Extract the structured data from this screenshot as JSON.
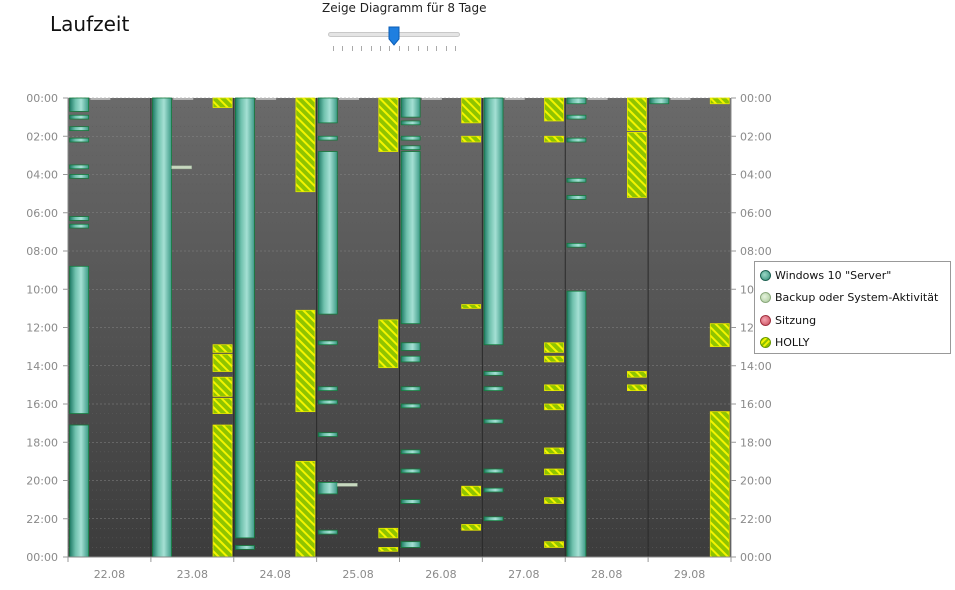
{
  "page": {
    "title": "Laufzeit",
    "slider_label": "Zeige Diagramm für 8 Tage",
    "slider_value_days": 8
  },
  "legend": [
    {
      "label": "Windows 10 \"Server\"",
      "color": "#2e9b84",
      "icon": "windows-dot"
    },
    {
      "label": "Backup oder System-Aktivität",
      "color": "#b9d8a8",
      "icon": "backup-dot"
    },
    {
      "label": "Sitzung",
      "color": "#d45a6a",
      "icon": "session-dot"
    },
    {
      "label": "HOLLY",
      "color": "#9acc00",
      "icon": "holly-dot"
    }
  ],
  "chart_data": {
    "type": "timeline",
    "title": "Laufzeit",
    "y_ticks": [
      "00:00",
      "02:00",
      "04:00",
      "06:00",
      "08:00",
      "10:00",
      "12:00",
      "14:00",
      "16:00",
      "18:00",
      "20:00",
      "22:00",
      "00:00"
    ],
    "y_range_hours": [
      0,
      24
    ],
    "categories": [
      "22.08",
      "23.08",
      "24.08",
      "25.08",
      "26.08",
      "27.08",
      "28.08",
      "29.08"
    ],
    "series": [
      {
        "name": "Windows 10 \"Server\"",
        "kind": "windows",
        "bars": [
          [
            0,
            0,
            0.7
          ],
          [
            0,
            0.9,
            1.1
          ],
          [
            0,
            1.5,
            1.7
          ],
          [
            0,
            2.1,
            2.3
          ],
          [
            0,
            3.5,
            3.7
          ],
          [
            0,
            4.0,
            4.2
          ],
          [
            0,
            6.2,
            6.4
          ],
          [
            0,
            6.6,
            6.8
          ],
          [
            0,
            8.8,
            16.5
          ],
          [
            0,
            17.1,
            24
          ],
          [
            1,
            0,
            24
          ],
          [
            2,
            0,
            23.0
          ],
          [
            2,
            23.4,
            23.6
          ],
          [
            3,
            0,
            1.3
          ],
          [
            3,
            2.0,
            2.2
          ],
          [
            3,
            2.8,
            11.3
          ],
          [
            3,
            12.7,
            12.9
          ],
          [
            3,
            15.1,
            15.3
          ],
          [
            3,
            15.8,
            16.0
          ],
          [
            3,
            17.5,
            17.7
          ],
          [
            3,
            20.1,
            20.7
          ],
          [
            3,
            22.6,
            22.8
          ],
          [
            4,
            0,
            1.0
          ],
          [
            4,
            1.2,
            1.4
          ],
          [
            4,
            2.0,
            2.2
          ],
          [
            4,
            2.5,
            2.7
          ],
          [
            4,
            2.8,
            11.8
          ],
          [
            4,
            12.8,
            13.2
          ],
          [
            4,
            13.5,
            13.8
          ],
          [
            4,
            15.1,
            15.3
          ],
          [
            4,
            16.0,
            16.2
          ],
          [
            4,
            18.4,
            18.6
          ],
          [
            4,
            19.4,
            19.6
          ],
          [
            4,
            21.0,
            21.2
          ],
          [
            4,
            23.2,
            23.5
          ],
          [
            5,
            0,
            12.9
          ],
          [
            5,
            14.3,
            14.5
          ],
          [
            5,
            15.1,
            15.3
          ],
          [
            5,
            16.8,
            17.0
          ],
          [
            5,
            19.4,
            19.6
          ],
          [
            5,
            20.4,
            20.6
          ],
          [
            5,
            21.9,
            22.1
          ],
          [
            6,
            0,
            0.3
          ],
          [
            6,
            0.9,
            1.1
          ],
          [
            6,
            2.1,
            2.3
          ],
          [
            6,
            4.2,
            4.4
          ],
          [
            6,
            5.1,
            5.3
          ],
          [
            6,
            7.6,
            7.8
          ],
          [
            6,
            10.1,
            24
          ],
          [
            7,
            0,
            0.3
          ]
        ]
      },
      {
        "name": "Backup oder System-Aktivität",
        "kind": "backup",
        "bars": [
          [
            1,
            3.6,
            3.7
          ],
          [
            3,
            20.2,
            20.3
          ]
        ]
      },
      {
        "name": "HOLLY",
        "kind": "holly",
        "bars": [
          [
            1,
            0,
            0.5
          ],
          [
            1,
            12.9,
            13.3
          ],
          [
            1,
            13.4,
            14.3
          ],
          [
            1,
            14.6,
            15.6
          ],
          [
            1,
            15.7,
            16.5
          ],
          [
            1,
            17.1,
            24
          ],
          [
            2,
            0,
            4.9
          ],
          [
            2,
            11.1,
            16.4
          ],
          [
            2,
            19.0,
            24
          ],
          [
            3,
            0,
            2.8
          ],
          [
            3,
            11.6,
            14.1
          ],
          [
            3,
            22.5,
            23.0
          ],
          [
            3,
            23.5,
            23.7
          ],
          [
            4,
            0,
            1.3
          ],
          [
            4,
            2.0,
            2.3
          ],
          [
            4,
            10.8,
            11.0
          ],
          [
            4,
            20.3,
            20.8
          ],
          [
            4,
            22.3,
            22.6
          ],
          [
            5,
            0,
            1.2
          ],
          [
            5,
            2.0,
            2.3
          ],
          [
            5,
            12.8,
            13.3
          ],
          [
            5,
            13.5,
            13.8
          ],
          [
            5,
            15.0,
            15.3
          ],
          [
            5,
            16.0,
            16.3
          ],
          [
            5,
            18.3,
            18.6
          ],
          [
            5,
            19.4,
            19.7
          ],
          [
            5,
            20.9,
            21.2
          ],
          [
            5,
            23.2,
            23.5
          ],
          [
            6,
            0,
            1.7
          ],
          [
            6,
            1.8,
            5.2
          ],
          [
            6,
            14.3,
            14.6
          ],
          [
            6,
            15.0,
            15.3
          ],
          [
            7,
            11.8,
            13.0
          ],
          [
            7,
            16.4,
            24
          ],
          [
            7,
            0,
            0.3
          ]
        ]
      }
    ]
  }
}
